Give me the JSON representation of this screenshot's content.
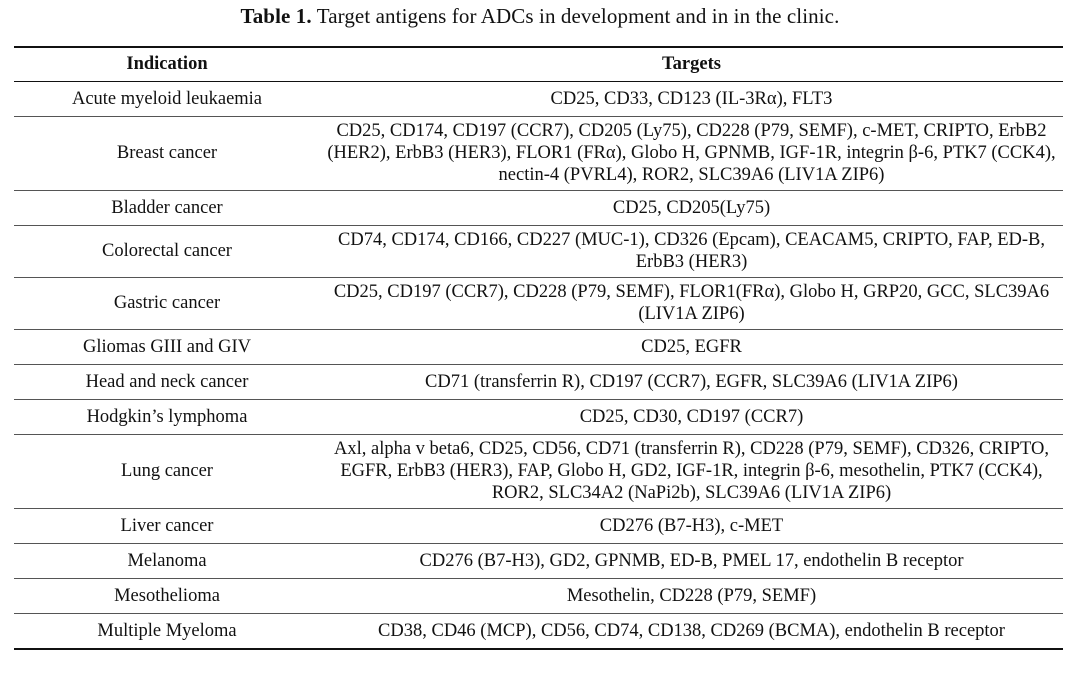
{
  "caption": {
    "label": "Table 1.",
    "text": "Target antigens for ADCs in development and in in the clinic."
  },
  "table": {
    "headers": [
      "Indication",
      "Targets"
    ],
    "rows": [
      {
        "indication": "Acute myeloid leukaemia",
        "targets": "CD25, CD33, CD123 (IL-3Rα), FLT3"
      },
      {
        "indication": "Breast cancer",
        "targets": "CD25, CD174, CD197 (CCR7), CD205 (Ly75), CD228 (P79, SEMF), c-MET, CRIPTO, ErbB2 (HER2), ErbB3 (HER3), FLOR1 (FRα), Globo H, GPNMB, IGF-1R, integrin β-6, PTK7 (CCK4), nectin-4 (PVRL4), ROR2, SLC39A6 (LIV1A ZIP6)"
      },
      {
        "indication": "Bladder cancer",
        "targets": "CD25, CD205(Ly75)"
      },
      {
        "indication": "Colorectal cancer",
        "targets": "CD74, CD174, CD166, CD227 (MUC-1), CD326 (Epcam), CEACAM5, CRIPTO, FAP, ED-B, ErbB3 (HER3)"
      },
      {
        "indication": "Gastric cancer",
        "targets": "CD25, CD197 (CCR7), CD228 (P79, SEMF), FLOR1(FRα), Globo H, GRP20, GCC, SLC39A6 (LIV1A ZIP6)"
      },
      {
        "indication": "Gliomas GIII and GIV",
        "targets": "CD25, EGFR"
      },
      {
        "indication": "Head and neck cancer",
        "targets": "CD71 (transferrin R), CD197 (CCR7), EGFR, SLC39A6 (LIV1A ZIP6)"
      },
      {
        "indication": "Hodgkin’s lymphoma",
        "targets": "CD25, CD30, CD197 (CCR7)"
      },
      {
        "indication": "Lung cancer",
        "targets": "Axl, alpha v beta6, CD25, CD56, CD71 (transferrin R), CD228 (P79, SEMF), CD326, CRIPTO, EGFR, ErbB3 (HER3), FAP, Globo H, GD2, IGF-1R, integrin β-6, mesothelin, PTK7 (CCK4), ROR2, SLC34A2 (NaPi2b), SLC39A6 (LIV1A ZIP6)"
      },
      {
        "indication": "Liver cancer",
        "targets": "CD276 (B7-H3), c-MET"
      },
      {
        "indication": "Melanoma",
        "targets": "CD276 (B7-H3), GD2, GPNMB, ED-B, PMEL 17, endothelin B receptor"
      },
      {
        "indication": "Mesothelioma",
        "targets": "Mesothelin, CD228 (P79, SEMF)"
      },
      {
        "indication": "Multiple Myeloma",
        "targets": "CD38, CD46 (MCP), CD56, CD74, CD138, CD269 (BCMA), endothelin B receptor"
      }
    ]
  }
}
